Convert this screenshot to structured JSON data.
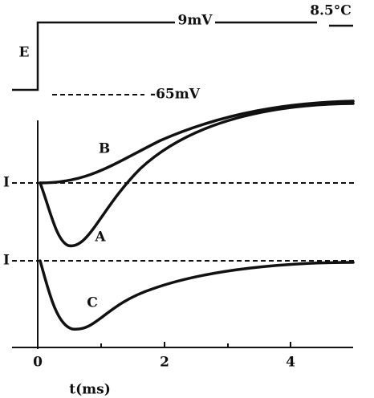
{
  "figure": {
    "step_label": "E",
    "step_amplitude": "9mV",
    "temperature": "8.5°C",
    "holding_potential": "-65mV",
    "current_labels": [
      "I",
      "I"
    ],
    "trace_labels": {
      "B": "B",
      "A": "A",
      "C": "C"
    },
    "x_tick_labels": [
      "0",
      "2",
      "4"
    ],
    "x_axis_label": "t(ms)"
  }
}
